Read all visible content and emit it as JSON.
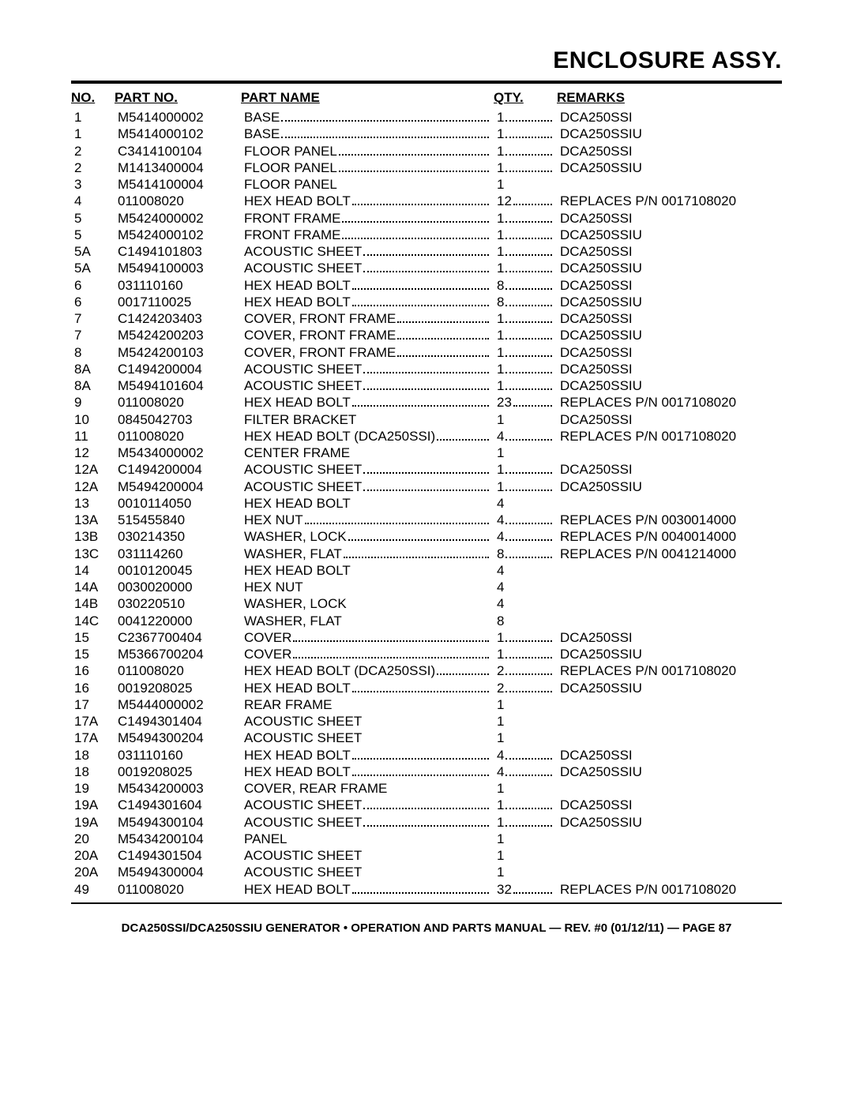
{
  "title": "ENCLOSURE ASSY.",
  "headers": {
    "no": "NO.",
    "partno": "PART NO.",
    "partname": "PART NAME",
    "qty": "QTY.",
    "remarks": "REMARKS"
  },
  "footer": "DCA250SSI/DCA250SSIU GENERATOR • OPERATION AND PARTS MANUAL — REV. #0 (01/12/11) — PAGE 87",
  "rows": [
    {
      "no": "1",
      "pn": "M5414000002",
      "name": "BASE",
      "qty": "1",
      "rem": "DCA250SSI",
      "dot": true
    },
    {
      "no": "1",
      "pn": "M5414000102",
      "name": "BASE",
      "qty": "1",
      "rem": "DCA250SSIU",
      "dot": true
    },
    {
      "no": "2",
      "pn": "C3414100104",
      "name": "FLOOR PANEL",
      "qty": "1",
      "rem": "DCA250SSI",
      "dot": true
    },
    {
      "no": "2",
      "pn": "M1413400004",
      "name": "FLOOR PANEL",
      "qty": "1",
      "rem": "DCA250SSIU",
      "dot": true
    },
    {
      "no": "3",
      "pn": "M5414100004",
      "name": "FLOOR PANEL",
      "qty": "1",
      "rem": "",
      "dot": false
    },
    {
      "no": "4",
      "pn": "011008020",
      "name": "HEX HEAD BOLT",
      "qty": "12",
      "rem": "REPLACES P/N 0017108020",
      "dot": true
    },
    {
      "no": "5",
      "pn": "M5424000002",
      "name": "FRONT FRAME",
      "qty": "1",
      "rem": "DCA250SSI",
      "dot": true
    },
    {
      "no": "5",
      "pn": "M5424000102",
      "name": "FRONT FRAME",
      "qty": "1",
      "rem": "DCA250SSIU",
      "dot": true
    },
    {
      "no": "5A",
      "pn": "C1494101803",
      "name": "ACOUSTIC SHEET",
      "qty": "1",
      "rem": "DCA250SSI",
      "dot": true
    },
    {
      "no": "5A",
      "pn": "M5494100003",
      "name": "ACOUSTIC SHEET",
      "qty": "1",
      "rem": "DCA250SSIU",
      "dot": true
    },
    {
      "no": "6",
      "pn": "031110160",
      "name": "HEX HEAD BOLT",
      "qty": "8",
      "rem": "DCA250SSI",
      "dot": true
    },
    {
      "no": "6",
      "pn": "0017110025",
      "name": "HEX HEAD BOLT",
      "qty": "8",
      "rem": "DCA250SSIU",
      "dot": true
    },
    {
      "no": "7",
      "pn": "C1424203403",
      "name": "COVER, FRONT FRAME",
      "qty": "1",
      "rem": "DCA250SSI",
      "dot": true
    },
    {
      "no": "7",
      "pn": "M5424200203",
      "name": "COVER, FRONT FRAME",
      "qty": "1",
      "rem": "DCA250SSIU",
      "dot": true
    },
    {
      "no": "8",
      "pn": "M5424200103",
      "name": "COVER, FRONT FRAME",
      "qty": "1",
      "rem": "DCA250SSI",
      "dot": true
    },
    {
      "no": "8A",
      "pn": "C1494200004",
      "name": "ACOUSTIC SHEET",
      "qty": "1",
      "rem": "DCA250SSI",
      "dot": true
    },
    {
      "no": "8A",
      "pn": "M5494101604",
      "name": "ACOUSTIC SHEET",
      "qty": "1",
      "rem": "DCA250SSIU",
      "dot": true
    },
    {
      "no": "9",
      "pn": "011008020",
      "name": "HEX HEAD BOLT",
      "qty": "23",
      "rem": "REPLACES P/N 0017108020",
      "dot": true
    },
    {
      "no": "10",
      "pn": "0845042703",
      "name": "FILTER BRACKET",
      "qty": "1",
      "rem": "DCA250SSI",
      "dot": false
    },
    {
      "no": "11",
      "pn": "011008020",
      "name": "HEX HEAD BOLT (DCA250SSI)",
      "qty": "4",
      "rem": "REPLACES P/N 0017108020",
      "dot": true
    },
    {
      "no": "12",
      "pn": "M5434000002",
      "name": "CENTER FRAME",
      "qty": "1",
      "rem": "",
      "dot": false
    },
    {
      "no": "12A",
      "pn": "C1494200004",
      "name": "ACOUSTIC SHEET",
      "qty": "1",
      "rem": "DCA250SSI",
      "dot": true
    },
    {
      "no": "12A",
      "pn": "M5494200004",
      "name": "ACOUSTIC SHEET",
      "qty": "1",
      "rem": "DCA250SSIU",
      "dot": true
    },
    {
      "no": "13",
      "pn": "0010114050",
      "name": "HEX HEAD BOLT",
      "qty": "4",
      "rem": "",
      "dot": false
    },
    {
      "no": "13A",
      "pn": "515455840",
      "name": "HEX NUT",
      "qty": "4",
      "rem": "REPLACES P/N 0030014000",
      "dot": true
    },
    {
      "no": "13B",
      "pn": "030214350",
      "name": "WASHER, LOCK",
      "qty": "4",
      "rem": "REPLACES P/N 0040014000",
      "dot": true
    },
    {
      "no": "13C",
      "pn": "031114260",
      "name": "WASHER, FLAT",
      "qty": "8",
      "rem": "REPLACES P/N 0041214000",
      "dot": true
    },
    {
      "no": "14",
      "pn": "0010120045",
      "name": "HEX HEAD BOLT",
      "qty": "4",
      "rem": "",
      "dot": false
    },
    {
      "no": "14A",
      "pn": "0030020000",
      "name": "HEX NUT",
      "qty": "4",
      "rem": "",
      "dot": false
    },
    {
      "no": "14B",
      "pn": "030220510",
      "name": "WASHER, LOCK",
      "qty": "4",
      "rem": "",
      "dot": false
    },
    {
      "no": "14C",
      "pn": "0041220000",
      "name": "WASHER, FLAT",
      "qty": "8",
      "rem": "",
      "dot": false
    },
    {
      "no": "15",
      "pn": "C2367700404",
      "name": "COVER",
      "qty": "1",
      "rem": "DCA250SSI",
      "dot": true
    },
    {
      "no": "15",
      "pn": "M5366700204",
      "name": "COVER",
      "qty": "1",
      "rem": "DCA250SSIU",
      "dot": true
    },
    {
      "no": "16",
      "pn": "011008020",
      "name": "HEX HEAD BOLT (DCA250SSI)",
      "qty": "2",
      "rem": "REPLACES P/N 0017108020",
      "dot": true
    },
    {
      "no": "16",
      "pn": "0019208025",
      "name": "HEX HEAD BOLT",
      "qty": "2",
      "rem": "DCA250SSIU",
      "dot": true
    },
    {
      "no": "17",
      "pn": "M5444000002",
      "name": "REAR FRAME",
      "qty": "1",
      "rem": "",
      "dot": false
    },
    {
      "no": "17A",
      "pn": "C1494301404",
      "name": "ACOUSTIC SHEET",
      "qty": "1",
      "rem": "",
      "dot": false
    },
    {
      "no": "17A",
      "pn": "M5494300204",
      "name": "ACOUSTIC SHEET",
      "qty": "1",
      "rem": "",
      "dot": false
    },
    {
      "no": "18",
      "pn": "031110160",
      "name": "HEX HEAD BOLT",
      "qty": "4",
      "rem": "DCA250SSI",
      "dot": true
    },
    {
      "no": "18",
      "pn": "0019208025",
      "name": "HEX HEAD BOLT",
      "qty": "4",
      "rem": "DCA250SSIU",
      "dot": true
    },
    {
      "no": "19",
      "pn": "M5434200003",
      "name": "COVER, REAR FRAME",
      "qty": "1",
      "rem": "",
      "dot": false
    },
    {
      "no": "19A",
      "pn": "C1494301604",
      "name": "ACOUSTIC SHEET",
      "qty": "1",
      "rem": "DCA250SSI",
      "dot": true
    },
    {
      "no": "19A",
      "pn": "M5494300104",
      "name": "ACOUSTIC SHEET",
      "qty": "1",
      "rem": "DCA250SSIU",
      "dot": true
    },
    {
      "no": "20",
      "pn": "M5434200104",
      "name": "PANEL",
      "qty": "1",
      "rem": "",
      "dot": false
    },
    {
      "no": "20A",
      "pn": "C1494301504",
      "name": "ACOUSTIC SHEET",
      "qty": "1",
      "rem": "",
      "dot": false
    },
    {
      "no": "20A",
      "pn": "M5494300004",
      "name": "ACOUSTIC SHEET",
      "qty": "1",
      "rem": "",
      "dot": false
    },
    {
      "no": "49",
      "pn": "011008020",
      "name": "HEX HEAD BOLT",
      "qty": "32",
      "rem": "REPLACES P/N 0017108020",
      "dot": true
    }
  ]
}
